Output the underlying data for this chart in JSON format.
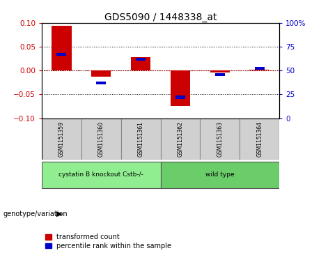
{
  "title": "GDS5090 / 1448338_at",
  "samples": [
    "GSM1151359",
    "GSM1151360",
    "GSM1151361",
    "GSM1151362",
    "GSM1151363",
    "GSM1151364"
  ],
  "red_values": [
    0.093,
    -0.013,
    0.028,
    -0.075,
    -0.004,
    0.002
  ],
  "blue_values_pct": [
    67,
    37,
    62,
    22,
    46,
    52
  ],
  "ylim_left": [
    -0.1,
    0.1
  ],
  "ylim_right": [
    0,
    100
  ],
  "yticks_left": [
    -0.1,
    -0.05,
    0,
    0.05,
    0.1
  ],
  "yticks_right": [
    0,
    25,
    50,
    75,
    100
  ],
  "groups": [
    {
      "label": "cystatin B knockout Cstb-/-",
      "samples": [
        0,
        1,
        2
      ],
      "color": "#90EE90"
    },
    {
      "label": "wild type",
      "samples": [
        3,
        4,
        5
      ],
      "color": "#6ACD6A"
    }
  ],
  "red_bar_width": 0.5,
  "blue_bar_width": 0.25,
  "red_color": "#CC0000",
  "blue_color": "#0000CC",
  "zero_line_color": "#CC0000",
  "tick_label_color_left": "#CC0000",
  "tick_label_color_right": "#0000CC",
  "legend_red": "transformed count",
  "legend_blue": "percentile rank within the sample",
  "genotype_label": "genotype/variation",
  "sample_box_color": "#D0D0D0",
  "group1_color": "#90EE90",
  "group2_color": "#6ACD6A"
}
